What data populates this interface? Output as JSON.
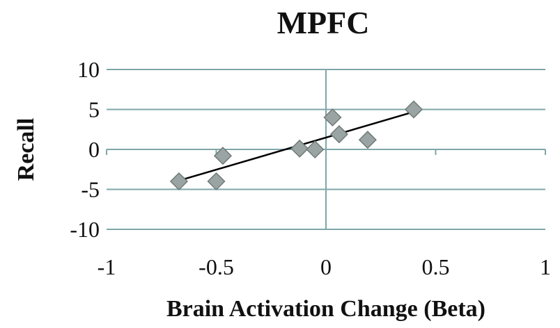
{
  "chart_data": {
    "type": "scatter",
    "title": "MPFC",
    "xlabel": "Brain Activation Change (Beta)",
    "ylabel": "Recall",
    "xlim": [
      -1,
      1
    ],
    "ylim": [
      -10,
      10
    ],
    "xticks": [
      -1,
      -0.5,
      0,
      0.5,
      1
    ],
    "xtick_labels": [
      "-1",
      "-0.5",
      "0",
      "0.5",
      "1"
    ],
    "yticks": [
      -10,
      -5,
      0,
      5,
      10
    ],
    "ytick_labels": [
      "-10",
      "-5",
      "0",
      "5",
      "10"
    ],
    "grid": "horizontal",
    "marker": "diamond",
    "marker_color": "#9aa5a3",
    "trendline_color": "#000000",
    "grid_color": "#7fa6a8",
    "series": [
      {
        "points": [
          {
            "x": -0.67,
            "y": -4
          },
          {
            "x": -0.5,
            "y": -4
          },
          {
            "x": -0.47,
            "y": -0.8
          },
          {
            "x": -0.12,
            "y": 0.1
          },
          {
            "x": -0.05,
            "y": 0
          },
          {
            "x": 0.03,
            "y": 4
          },
          {
            "x": 0.06,
            "y": 1.9
          },
          {
            "x": 0.19,
            "y": 1.2
          },
          {
            "x": 0.4,
            "y": 5
          }
        ]
      }
    ],
    "trendline": {
      "x1": -0.67,
      "y1": -3.9,
      "x2": 0.4,
      "y2": 4.7
    }
  }
}
